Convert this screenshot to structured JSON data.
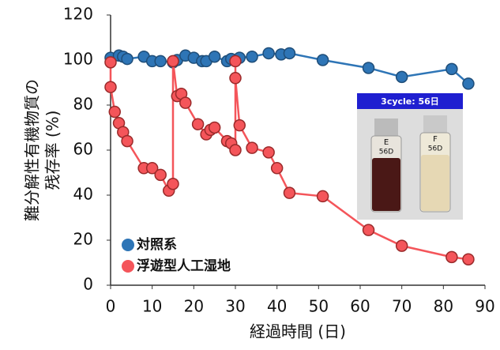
{
  "chart_data": {
    "type": "line",
    "xlabel": "経過時間 (日)",
    "ylabel": [
      "難分解性有機物質の",
      "残存率 (%)"
    ],
    "xlim": [
      0,
      90
    ],
    "xticks": [
      0,
      10,
      20,
      30,
      40,
      50,
      60,
      70,
      80,
      90
    ],
    "ylim": [
      0,
      120
    ],
    "yticks": [
      0,
      20,
      40,
      60,
      80,
      100,
      120
    ],
    "legend": "lower left",
    "series": [
      {
        "name": "対照系",
        "color": "#2e75b6",
        "x": [
          0,
          2,
          3,
          4,
          8,
          10,
          12,
          15,
          16,
          18,
          20,
          22,
          23,
          25,
          28,
          29,
          31,
          34,
          38,
          41,
          43,
          51,
          62,
          70,
          82,
          86
        ],
        "values": [
          101,
          102,
          101.5,
          100.5,
          101.5,
          99.5,
          99.5,
          99,
          100,
          102,
          101,
          99.5,
          99.5,
          101.5,
          99.5,
          100.5,
          101,
          101.5,
          103,
          102.5,
          103,
          100,
          96.5,
          92.5,
          96,
          89.5
        ]
      },
      {
        "name": "浮遊型人工湿地",
        "color": "#f4555a",
        "x": [
          0,
          0,
          1,
          2,
          3,
          4,
          8,
          10,
          12,
          14,
          15,
          15,
          16,
          17,
          18,
          21,
          23,
          24,
          25,
          28,
          29,
          30,
          30,
          30,
          31,
          34,
          38,
          40,
          43,
          51,
          62,
          70,
          82,
          86
        ],
        "values": [
          99,
          88,
          77,
          72,
          68,
          64,
          52,
          52,
          49,
          42,
          45,
          99.5,
          84,
          85,
          81,
          71.5,
          67,
          69,
          70,
          64,
          63,
          60,
          99.5,
          92,
          71,
          61,
          59,
          52,
          41,
          39.5,
          24.5,
          17.5,
          12.5,
          11.5
        ]
      }
    ],
    "inset": {
      "title": "3cycle: 56日",
      "vials": [
        {
          "label": "E",
          "sub": "56D"
        },
        {
          "label": "F",
          "sub": "56D"
        }
      ]
    }
  }
}
